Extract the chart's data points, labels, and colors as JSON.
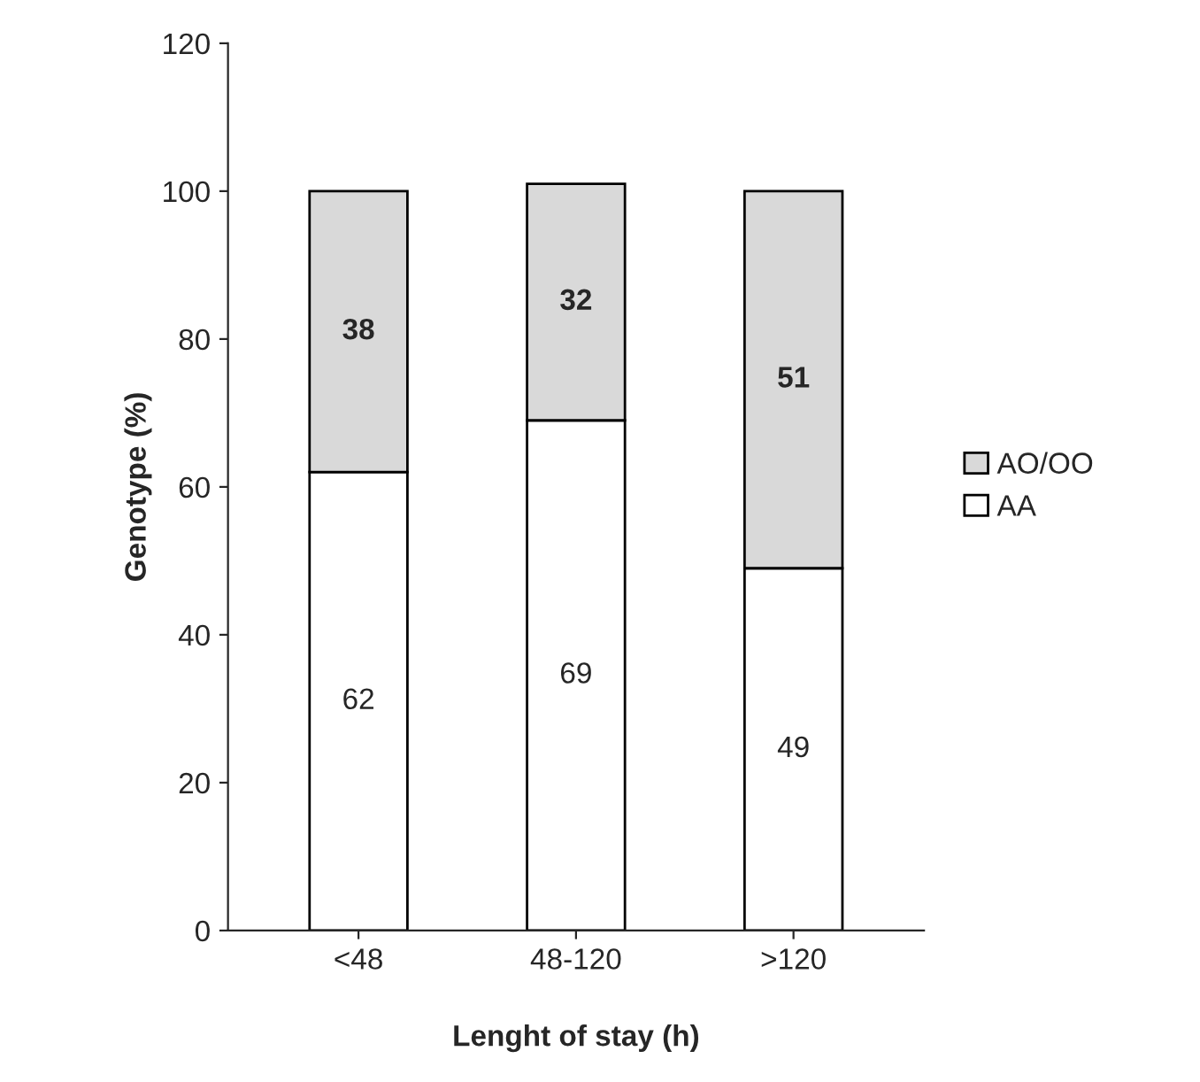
{
  "chart_data": {
    "type": "bar",
    "xlabel": "Lenght of stay (h)",
    "ylabel": "Genotype (%)",
    "categories": [
      "<48",
      "48-120",
      ">120"
    ],
    "series": [
      {
        "name": "AA",
        "color": "#ffffff",
        "values": [
          62,
          69,
          49
        ]
      },
      {
        "name": "AO/OO",
        "color": "#d9d9d9",
        "values": [
          38,
          32,
          51
        ]
      }
    ],
    "stacked": true,
    "ylim": [
      0,
      120
    ],
    "yticks": [
      0,
      20,
      40,
      60,
      80,
      100,
      120
    ],
    "grid": false,
    "legend": "right",
    "data_labels": true
  }
}
